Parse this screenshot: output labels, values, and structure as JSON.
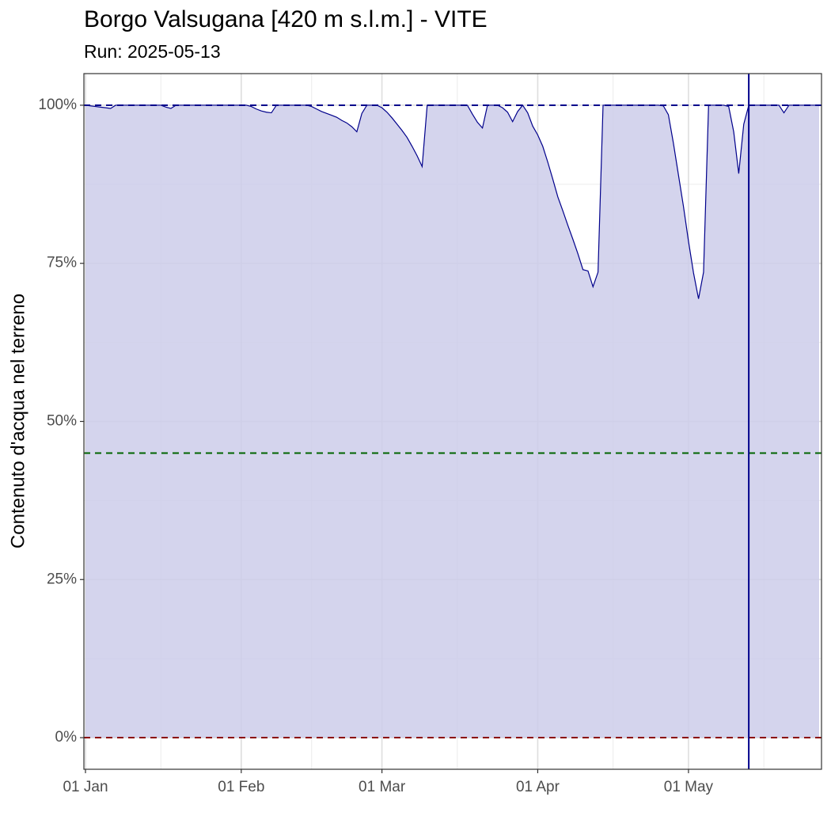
{
  "chart_data": {
    "type": "area",
    "title": "Borgo Valsugana [420 m s.l.m.] - VITE",
    "subtitle": "Run: 2025-05-13",
    "ylabel": "Contenuto d'acqua nel terreno",
    "x": [
      "01-01",
      "01-02",
      "01-03",
      "01-04",
      "01-05",
      "01-06",
      "01-07",
      "01-08",
      "01-09",
      "01-10",
      "01-11",
      "01-12",
      "01-13",
      "01-14",
      "01-15",
      "01-16",
      "01-17",
      "01-18",
      "01-19",
      "01-20",
      "01-21",
      "01-22",
      "01-23",
      "01-24",
      "01-25",
      "01-26",
      "01-27",
      "01-28",
      "01-29",
      "01-30",
      "01-31",
      "02-01",
      "02-02",
      "02-03",
      "02-04",
      "02-05",
      "02-06",
      "02-07",
      "02-08",
      "02-09",
      "02-10",
      "02-11",
      "02-12",
      "02-13",
      "02-14",
      "02-15",
      "02-16",
      "02-17",
      "02-18",
      "02-19",
      "02-20",
      "02-21",
      "02-22",
      "02-23",
      "02-24",
      "02-25",
      "02-26",
      "02-27",
      "02-28",
      "03-01",
      "03-02",
      "03-03",
      "03-04",
      "03-05",
      "03-06",
      "03-07",
      "03-08",
      "03-09",
      "03-10",
      "03-11",
      "03-12",
      "03-13",
      "03-14",
      "03-15",
      "03-16",
      "03-17",
      "03-18",
      "03-19",
      "03-20",
      "03-21",
      "03-22",
      "03-23",
      "03-24",
      "03-25",
      "03-26",
      "03-27",
      "03-28",
      "03-29",
      "03-30",
      "03-31",
      "04-01",
      "04-02",
      "04-03",
      "04-04",
      "04-05",
      "04-06",
      "04-07",
      "04-08",
      "04-09",
      "04-10",
      "04-11",
      "04-12",
      "04-13",
      "04-14",
      "04-15",
      "04-16",
      "04-17",
      "04-18",
      "04-19",
      "04-20",
      "04-21",
      "04-22",
      "04-23",
      "04-24",
      "04-25",
      "04-26",
      "04-27",
      "04-28",
      "04-29",
      "04-30",
      "05-01",
      "05-02",
      "05-03",
      "05-04",
      "05-05",
      "05-06",
      "05-07",
      "05-08",
      "05-09",
      "05-10",
      "05-11",
      "05-12",
      "05-13",
      "05-14",
      "05-15",
      "05-16",
      "05-17",
      "05-18",
      "05-19",
      "05-20",
      "05-21",
      "05-22",
      "05-23",
      "05-24",
      "05-25",
      "05-26",
      "05-27"
    ],
    "values": [
      100,
      99.9,
      99.8,
      99.7,
      99.6,
      99.5,
      100,
      100,
      100,
      100,
      100,
      100,
      100,
      100,
      100,
      100,
      99.7,
      99.5,
      100,
      100,
      100,
      100,
      100,
      100,
      100,
      100,
      100,
      100,
      100,
      100,
      100,
      100,
      100,
      99.8,
      99.4,
      99.1,
      98.9,
      98.8,
      100,
      100,
      100,
      100,
      100,
      100,
      100,
      99.8,
      99.4,
      99.0,
      98.7,
      98.4,
      98.1,
      97.6,
      97.2,
      96.6,
      95.8,
      98.7,
      100,
      100,
      100,
      99.6,
      98.9,
      98.0,
      97.0,
      96.0,
      94.9,
      93.5,
      92.0,
      90.3,
      100,
      100,
      100,
      100,
      100,
      100,
      100,
      100,
      100,
      98.6,
      97.3,
      96.4,
      100,
      100,
      100,
      99.6,
      98.9,
      97.4,
      99.0,
      100,
      98.8,
      96.7,
      95.3,
      93.5,
      91.0,
      88.3,
      85.5,
      83.3,
      81.0,
      78.8,
      76.5,
      74.0,
      73.8,
      71.3,
      73.6,
      100,
      100,
      100,
      100,
      100,
      100,
      100,
      100,
      100,
      100,
      100,
      100,
      99.9,
      98.5,
      94,
      89,
      84,
      78.5,
      73.5,
      69.4,
      73.6,
      100,
      100,
      100,
      100,
      99.8,
      95.8,
      89.2,
      97.0,
      100,
      100,
      100,
      100,
      100,
      100,
      100,
      98.8,
      100,
      100,
      100,
      100,
      100,
      100,
      100
    ],
    "color": "#00008b",
    "fill": "#ccccea",
    "xlim": [
      "01-01",
      "05-27"
    ],
    "xticks": [
      {
        "value": "01-01",
        "label": "01 Jan"
      },
      {
        "value": "02-01",
        "label": "01 Feb"
      },
      {
        "value": "03-01",
        "label": "01 Mar"
      },
      {
        "value": "04-01",
        "label": "01 Apr"
      },
      {
        "value": "05-01",
        "label": "01 May"
      }
    ],
    "minor_xticks": [
      "01-16",
      "02-15",
      "03-16",
      "04-16",
      "05-16"
    ],
    "ylim": [
      -5,
      105
    ],
    "yticks": [
      {
        "value": 0,
        "label": "0%"
      },
      {
        "value": 25,
        "label": "25%"
      },
      {
        "value": 50,
        "label": "50%"
      },
      {
        "value": 75,
        "label": "75%"
      },
      {
        "value": 100,
        "label": "100%"
      }
    ],
    "minor_yticks": [
      12.5,
      37.5,
      62.5,
      87.5
    ],
    "grid": true,
    "hlines": [
      {
        "value": 100,
        "color": "#00008b"
      },
      {
        "value": 45,
        "color": "#006400"
      },
      {
        "value": 0,
        "color": "#8b0000"
      }
    ],
    "vline": {
      "x": "05-13",
      "color": "#00008b"
    }
  }
}
